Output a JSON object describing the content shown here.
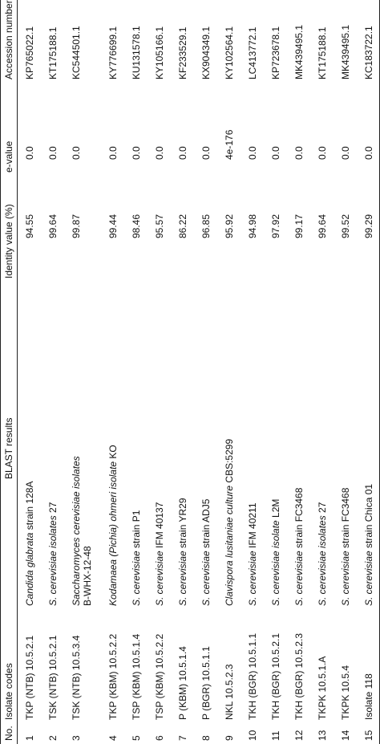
{
  "table": {
    "headers": {
      "no": "No.",
      "isolate": "Isolate codes",
      "blast": "BLAST results",
      "identity": "Identity value (%)",
      "evalue": "e-value",
      "accession": "Accession number"
    },
    "rows": [
      {
        "no": "1",
        "isolate": "TKP (NTB) 10.5.2.1",
        "blast": [
          {
            "text": "Candida glabrata",
            "italic": true
          },
          {
            "text": " strain 128A",
            "italic": false
          }
        ],
        "identity": "94.55",
        "evalue": "0.0",
        "accession": "KP765022.1"
      },
      {
        "no": "2",
        "isolate": "TSK (NTB) 10.5.2.1",
        "blast": [
          {
            "text": "S. cerevisiae isolates",
            "italic": true
          },
          {
            "text": " 27",
            "italic": false
          }
        ],
        "identity": "99.64",
        "evalue": "0.0",
        "accession": "KT175188.1"
      },
      {
        "no": "3",
        "isolate": "TSK (NTB) 10.5.3.4",
        "blast": [
          {
            "text": "Saccharomyces cerevisiae isolates",
            "italic": true
          },
          {
            "text": "B-WHX-12-48",
            "italic": false
          }
        ],
        "identity": "99.87",
        "evalue": "0.0",
        "accession": "KC544501.1"
      },
      {
        "no": "4",
        "isolate": "TKP (KBM) 10.5.2.2",
        "blast": [
          {
            "text": "Kodamaea (Pichia) ohmeri isolate",
            "italic": true
          },
          {
            "text": " KO",
            "italic": false
          }
        ],
        "identity": "99.44",
        "evalue": "0.0",
        "accession": "KY776699.1"
      },
      {
        "no": "5",
        "isolate": "TSP (KBM) 10.5.1.4",
        "blast": [
          {
            "text": "S. cerevisiae",
            "italic": true
          },
          {
            "text": " strain P1",
            "italic": false
          }
        ],
        "identity": "98.46",
        "evalue": "0.0",
        "accession": "KU131578.1"
      },
      {
        "no": "6",
        "isolate": "TSP (KBM) 10.5.2.2",
        "blast": [
          {
            "text": "S. cerevisiae",
            "italic": true
          },
          {
            "text": " IFM 40137",
            "italic": false
          }
        ],
        "identity": "95.57",
        "evalue": "0.0",
        "accession": "KY105166.1"
      },
      {
        "no": "7",
        "isolate": "P (KBM) 10.5.1.4",
        "blast": [
          {
            "text": "S. cerevisiae",
            "italic": true
          },
          {
            "text": " strain YR29",
            "italic": false
          }
        ],
        "identity": "86.22",
        "evalue": "0.0",
        "accession": "KF233529.1"
      },
      {
        "no": "8",
        "isolate": "P (BGR) 10.5.1.1",
        "blast": [
          {
            "text": "S. cerevisiae",
            "italic": true
          },
          {
            "text": " strain ADJ5",
            "italic": false
          }
        ],
        "identity": "96.85",
        "evalue": "0.0",
        "accession": "KX904349.1"
      },
      {
        "no": "9",
        "isolate": "NKL 10.5.2.3",
        "blast": [
          {
            "text": "Clavispora lusitaniae culture",
            "italic": true
          },
          {
            "text": " CBS:5299",
            "italic": false
          }
        ],
        "identity": "95.92",
        "evalue": "4e-176",
        "accession": "KY102564.1"
      },
      {
        "no": "10",
        "isolate": "TKH (BGR) 10.5.1.1",
        "blast": [
          {
            "text": "S. cerevisiae",
            "italic": true
          },
          {
            "text": " IFM 40211",
            "italic": false
          }
        ],
        "identity": "94.98",
        "evalue": "0.0",
        "accession": "LC413772.1"
      },
      {
        "no": "11",
        "isolate": "TKH (BGR) 10.5.2.1",
        "blast": [
          {
            "text": "S. cerevisiae isolate",
            "italic": true
          },
          {
            "text": " L2M",
            "italic": false
          }
        ],
        "identity": "97.92",
        "evalue": "0.0",
        "accession": "KP723678.1"
      },
      {
        "no": "12",
        "isolate": "TKH (BGR) 10.5.2.3",
        "blast": [
          {
            "text": "S. cerevisiae",
            "italic": true
          },
          {
            "text": " strain FC3468",
            "italic": false
          }
        ],
        "identity": "99.17",
        "evalue": "0.0",
        "accession": "MK439495.1"
      },
      {
        "no": "13",
        "isolate": "TKPK 10.5.1.A",
        "blast": [
          {
            "text": "S. cerevisiae isolates",
            "italic": true
          },
          {
            "text": " 27",
            "italic": false
          }
        ],
        "identity": "99.64",
        "evalue": "0.0",
        "accession": "KT175188.1"
      },
      {
        "no": "14",
        "isolate": "TKPK 10.5.4",
        "blast": [
          {
            "text": "S. cerevisiae",
            "italic": true
          },
          {
            "text": " strain FC3468",
            "italic": false
          }
        ],
        "identity": "99.52",
        "evalue": "0.0",
        "accession": "MK439495.1"
      },
      {
        "no": "15",
        "isolate": "Isolate 118",
        "blast": [
          {
            "text": "S. cerevisiae",
            "italic": true
          },
          {
            "text": " strain Chica 01",
            "italic": false
          }
        ],
        "identity": "99.29",
        "evalue": "0.0",
        "accession": "KC183722.1"
      }
    ]
  }
}
